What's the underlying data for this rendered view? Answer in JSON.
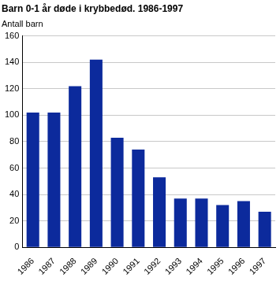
{
  "chart_data": {
    "type": "bar",
    "title": "Barn 0-1 år døde i krybbedød. 1986-1997",
    "ylabel": "Antall barn",
    "categories": [
      "1986",
      "1987",
      "1988",
      "1989",
      "1990",
      "1991",
      "1992",
      "1993",
      "1994",
      "1995",
      "1996",
      "1997"
    ],
    "values": [
      102,
      102,
      122,
      142,
      83,
      74,
      53,
      37,
      37,
      32,
      35,
      27
    ],
    "color": "#0c2a9c",
    "ylim": [
      0,
      160
    ],
    "yticks": [
      0,
      20,
      40,
      60,
      80,
      100,
      120,
      140,
      160
    ],
    "grid": true
  }
}
